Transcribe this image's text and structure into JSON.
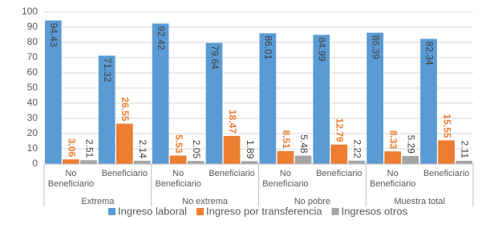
{
  "chart_data": {
    "type": "bar",
    "categories": [
      "No Beneficiario",
      "Beneficiario",
      "No Beneficiario",
      "Beneficiario",
      "No Beneficiario",
      "Beneficiario",
      "No Beneficiario",
      "Beneficiario"
    ],
    "category_groups": [
      "Extrema",
      "No extrema",
      "No pobre",
      "Muestra total"
    ],
    "series": [
      {
        "name": "Ingreso laboral",
        "color": "#5b9bd5",
        "values": [
          94.43,
          71.32,
          92.42,
          79.64,
          86.01,
          84.99,
          86.39,
          82.34
        ]
      },
      {
        "name": "Ingreso por transferencia",
        "color": "#ed7d31",
        "values": [
          3.06,
          26.55,
          5.53,
          18.47,
          8.51,
          12.79,
          8.33,
          15.55
        ]
      },
      {
        "name": "Ingresos otros",
        "color": "#a5a5a5",
        "values": [
          2.51,
          2.14,
          2.05,
          1.89,
          5.48,
          2.22,
          5.29,
          2.11
        ]
      }
    ],
    "ylim": [
      0,
      100
    ],
    "yticks": [
      0,
      10,
      20,
      30,
      40,
      50,
      60,
      70,
      80,
      90,
      100
    ],
    "grid": true,
    "legend": "bottom"
  }
}
